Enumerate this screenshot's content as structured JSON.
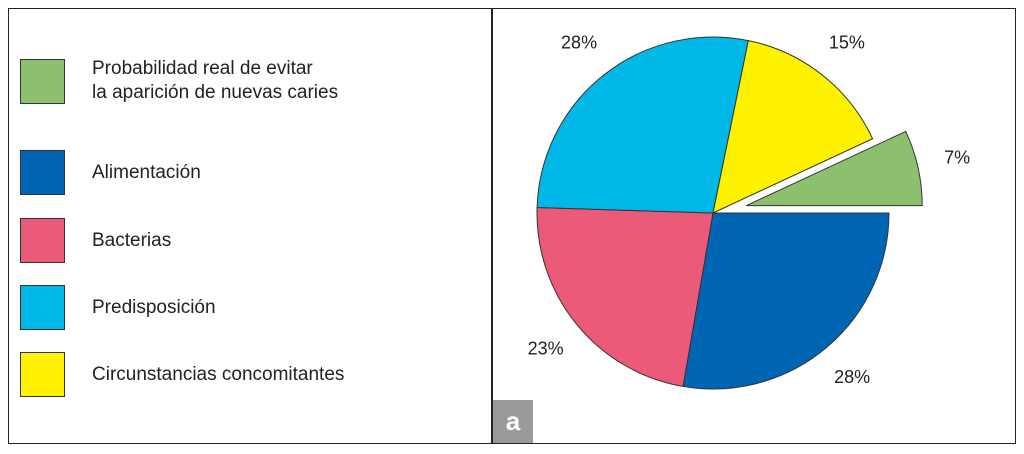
{
  "chart_data": {
    "type": "pie",
    "categories": [
      "Probabilidad real de evitar\nla aparición de nuevas caries",
      "Alimentación",
      "Bacterias",
      "Predisposición",
      "Circunstancias concomitantes"
    ],
    "values": [
      7,
      28,
      23,
      28,
      15
    ],
    "value_labels": [
      "7%",
      "28%",
      "23%",
      "28%",
      "15%"
    ],
    "colors": [
      "#8cc06e",
      "#0066b3",
      "#ec5a7a",
      "#00b8e8",
      "#fff200"
    ],
    "exploded": [
      true,
      false,
      false,
      false,
      false
    ],
    "legend": "left",
    "panel_label": "a"
  }
}
